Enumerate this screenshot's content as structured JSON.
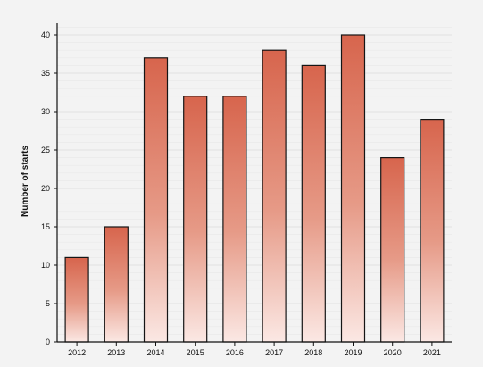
{
  "chart_data": {
    "type": "bar",
    "title": "",
    "xlabel": "",
    "ylabel": "Number of starts",
    "categories": [
      "2012",
      "2013",
      "2014",
      "2015",
      "2016",
      "2017",
      "2018",
      "2019",
      "2020",
      "2021"
    ],
    "values": [
      11,
      15,
      37,
      32,
      32,
      38,
      36,
      40,
      24,
      29
    ],
    "ylim": [
      0,
      40
    ],
    "yticks": [
      0,
      5,
      10,
      15,
      20,
      25,
      30,
      35,
      40
    ],
    "minor_gridlines": true,
    "grid": true,
    "legend": "none",
    "colors": {
      "background": "#f3f3f3",
      "plot_background": "#f3f3f3",
      "grid": "#dfdfdf",
      "bar_top": "#d7654d",
      "bar_bottom": "#fbe8e4",
      "bar_stroke": "#151515",
      "axis": "#111111",
      "text": "#111111"
    }
  }
}
